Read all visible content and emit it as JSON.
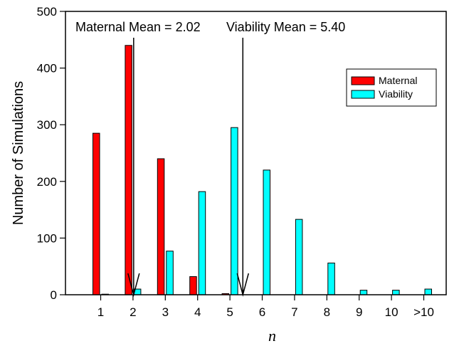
{
  "chart_data": {
    "type": "bar",
    "xlabel": "n",
    "ylabel": "Number of Simulations",
    "ylim": [
      0,
      500
    ],
    "yticks": [
      0,
      100,
      200,
      300,
      400,
      500
    ],
    "categories": [
      "1",
      "2",
      "3",
      "4",
      "5",
      "6",
      "7",
      "8",
      "9",
      "10",
      ">10"
    ],
    "series": [
      {
        "name": "Maternal",
        "color": "#ff0000",
        "values": [
          285,
          440,
          240,
          32,
          2,
          0,
          0,
          0,
          0,
          0,
          0
        ]
      },
      {
        "name": "Viability",
        "color": "#00ffff",
        "values": [
          1,
          10,
          77,
          182,
          295,
          220,
          133,
          56,
          8,
          8,
          10
        ]
      }
    ],
    "legend": {
      "position": "top-right",
      "entries": [
        "Maternal",
        "Viability"
      ]
    },
    "annotations": [
      {
        "text": "Maternal Mean = 2.02",
        "x": 2.02
      },
      {
        "text": "Viability Mean = 5.40",
        "x": 5.4
      }
    ],
    "grid": false
  }
}
